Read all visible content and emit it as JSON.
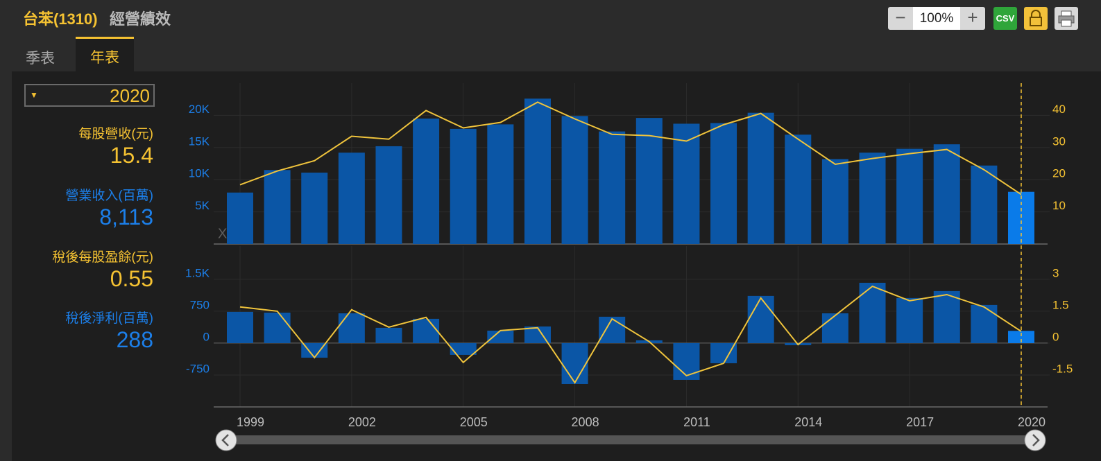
{
  "header": {
    "title": "台苯(1310)",
    "subtitle": "經營績效"
  },
  "tabs": [
    "季表",
    "年表"
  ],
  "toolbar": {
    "zoom": "100%",
    "csv": "CSV"
  },
  "watermark": "XQ",
  "sidebar": {
    "revenue": "8,113"
  },
  "chart_data": [
    {
      "type": "bar-line",
      "ylim": [
        0,
        25000
      ],
      "yticks": [
        {
          "value": 5000,
          "label": "5K"
        },
        {
          "value": 10000,
          "label": "10K"
        },
        {
          "value": 15000,
          "label": "15K"
        },
        {
          "value": 20000,
          "label": "20K"
        }
      ],
      "y2lim": [
        0,
        50
      ],
      "y2ticks": [
        10,
        20,
        30,
        40
      ],
      "grid": true,
      "series": [
        {
          "name": "營業收入(百萬)",
          "type": "bar",
          "color": "#0b56a6",
          "highlight_color": "#0a7be9",
          "values": [
            8000,
            11500,
            11100,
            14200,
            15200,
            19500,
            17900,
            18600,
            22600,
            19900,
            17500,
            19600,
            18700,
            18800,
            20400,
            17000,
            13200,
            14200,
            14800,
            15500,
            12200,
            8113
          ]
        },
        {
          "name": "每股營收(元)",
          "type": "line",
          "axis": "y2",
          "color": "#f0c43c",
          "values": [
            18.4,
            22.7,
            25.9,
            33.5,
            32.6,
            41.5,
            36.1,
            37.8,
            44.1,
            38.9,
            34.1,
            33.7,
            32.0,
            37.1,
            40.6,
            32.6,
            24.8,
            26.6,
            28.1,
            29.4,
            23.1,
            15.4
          ]
        }
      ]
    },
    {
      "type": "bar-line",
      "categories": [
        "1999",
        null,
        null,
        "2002",
        null,
        null,
        "2005",
        null,
        null,
        "2008",
        null,
        null,
        "2011",
        null,
        null,
        "2014",
        null,
        null,
        "2017",
        null,
        null,
        "2020"
      ],
      "ylim": [
        -1500,
        2280
      ],
      "yticks": [
        -750,
        0,
        750,
        {
          "value": 1500,
          "label": "1.5K"
        }
      ],
      "y2lim": [
        -3,
        4.56
      ],
      "y2ticks": [
        -1.5,
        0,
        1.5,
        3
      ],
      "grid": true,
      "series": [
        {
          "name": "稅後淨利(百萬)",
          "type": "bar",
          "color": "#0b56a6",
          "highlight_color": "#0a7be9",
          "values": [
            734,
            717,
            -342,
            701,
            359,
            571,
            -277,
            293,
            391,
            -962,
            620,
            65,
            -864,
            -473,
            1109,
            -49,
            701,
            1418,
            1060,
            1223,
            897,
            288
          ]
        },
        {
          "name": "稅後每股盈餘(元)",
          "type": "line",
          "axis": "y2",
          "color": "#f0c43c",
          "values": [
            1.7,
            1.5,
            -0.68,
            1.57,
            0.75,
            1.21,
            -0.91,
            0.59,
            0.72,
            -1.86,
            1.14,
            0.07,
            -1.53,
            -0.95,
            2.12,
            -0.07,
            1.3,
            2.67,
            1.99,
            2.28,
            1.7,
            0.55
          ]
        }
      ]
    }
  ]
}
